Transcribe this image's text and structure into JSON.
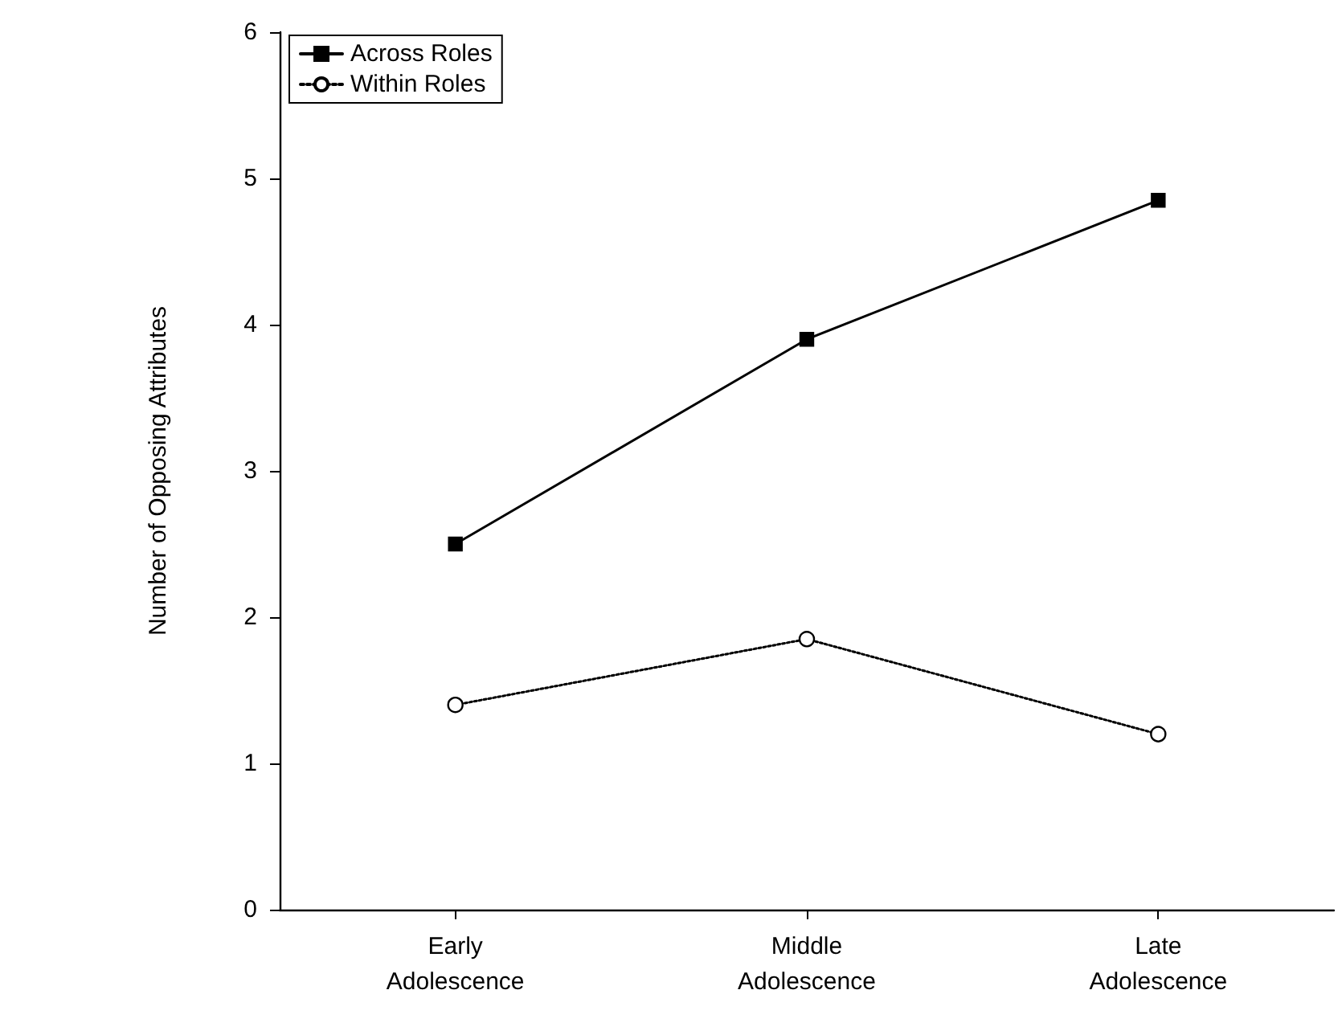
{
  "chart_data": {
    "type": "line",
    "ylabel": "Number of Opposing Attributes",
    "categories": [
      "Early\nAdolescence",
      "Middle\nAdolescence",
      "Late\nAdolescence"
    ],
    "series": [
      {
        "name": "Across Roles",
        "color": "#000000",
        "values": [
          2.5,
          3.9,
          4.85
        ],
        "marker": "square",
        "line_style": "solid"
      },
      {
        "name": "Within Roles",
        "color": "#000000",
        "values": [
          1.4,
          1.85,
          1.2
        ],
        "marker": "circle",
        "line_style": "dotted"
      }
    ],
    "ylim": [
      0,
      6
    ],
    "yticks": [
      0,
      1,
      2,
      3,
      4,
      5,
      6
    ],
    "grid": false,
    "legend": "top left"
  }
}
